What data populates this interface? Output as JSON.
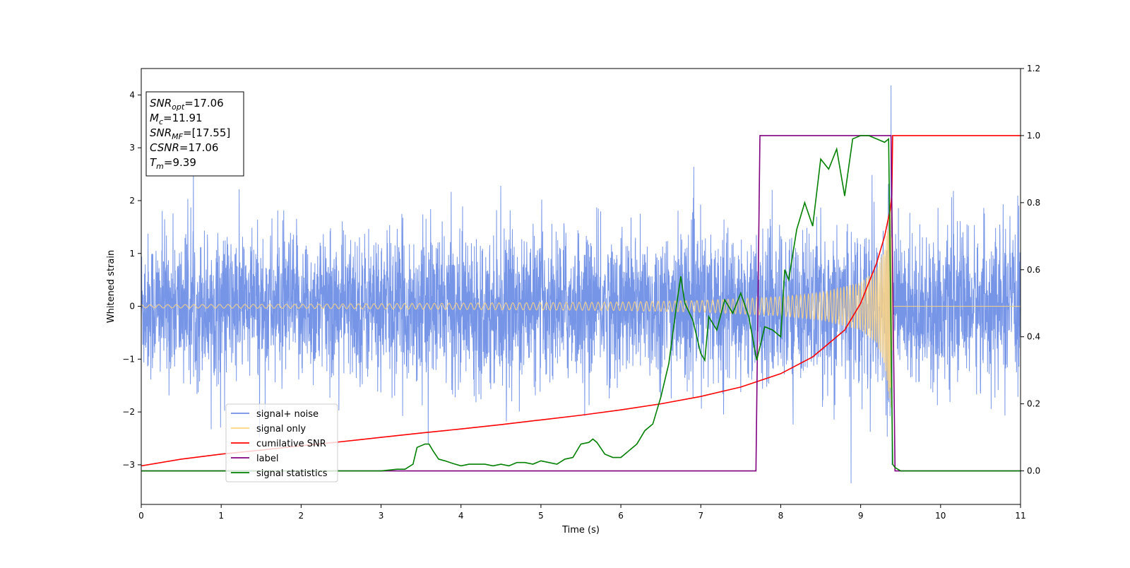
{
  "chart_data": {
    "type": "line",
    "xlabel": "Time (s)",
    "ylabel": "Whitened strain",
    "xlim": [
      0,
      11
    ],
    "ylim": [
      -3.75,
      4.5
    ],
    "y2lim": [
      -0.1,
      1.2
    ],
    "xticks": [
      "0",
      "1",
      "2",
      "3",
      "4",
      "5",
      "6",
      "7",
      "8",
      "9",
      "10",
      "11"
    ],
    "yticks": [
      "−3",
      "−2",
      "−1",
      "0",
      "1",
      "2",
      "3",
      "4"
    ],
    "y2ticks": [
      "0.0",
      "0.2",
      "0.4",
      "0.6",
      "0.8",
      "1.0",
      "1.2"
    ],
    "grid": false,
    "legend_position": "lower-left",
    "series": [
      {
        "name": "signal+ noise",
        "color": "#6f8fe6",
        "axis": "left",
        "description_points": {
          "noise_std": 0.72,
          "typical_max": 3.0,
          "peak_x": 9.38,
          "peak_y": 4.18,
          "min_x": 8.88,
          "min_y": -3.35
        }
      },
      {
        "name": "signal only",
        "color": "#ffd580",
        "axis": "left",
        "envelope": {
          "x": [
            0,
            2,
            4,
            6,
            7,
            8,
            8.5,
            9,
            9.2,
            9.3,
            9.37,
            9.39,
            9.4,
            11
          ],
          "amp": [
            0.03,
            0.04,
            0.06,
            0.08,
            0.11,
            0.18,
            0.26,
            0.45,
            0.7,
            1.1,
            1.9,
            2.2,
            0,
            0
          ]
        }
      },
      {
        "name": "cumilative SNR",
        "color": "#ff0000",
        "axis": "right",
        "x": [
          0,
          0.5,
          1,
          1.5,
          2,
          2.5,
          3,
          3.5,
          4,
          4.5,
          5,
          5.5,
          6,
          6.5,
          7,
          7.5,
          8,
          8.4,
          8.8,
          9,
          9.2,
          9.3,
          9.37,
          9.39,
          9.4,
          11
        ],
        "y": [
          0.015,
          0.035,
          0.05,
          0.062,
          0.075,
          0.087,
          0.1,
          0.113,
          0.125,
          0.138,
          0.152,
          0.166,
          0.182,
          0.2,
          0.222,
          0.25,
          0.29,
          0.34,
          0.42,
          0.5,
          0.62,
          0.7,
          0.78,
          0.82,
          1.0,
          1.0
        ]
      },
      {
        "name": "label",
        "color": "#800080",
        "axis": "right",
        "x": [
          0,
          7.69,
          7.74,
          9.38,
          9.43,
          11
        ],
        "y": [
          0,
          0,
          1,
          1,
          0,
          0
        ]
      },
      {
        "name": "signal statistics",
        "color": "#008000",
        "axis": "right",
        "x": [
          0,
          3.0,
          3.2,
          3.3,
          3.4,
          3.45,
          3.55,
          3.6,
          3.65,
          3.72,
          3.8,
          3.9,
          4.0,
          4.1,
          4.2,
          4.3,
          4.4,
          4.5,
          4.6,
          4.7,
          4.8,
          4.9,
          5.0,
          5.1,
          5.2,
          5.3,
          5.4,
          5.5,
          5.6,
          5.65,
          5.7,
          5.8,
          5.9,
          6.0,
          6.1,
          6.2,
          6.3,
          6.4,
          6.5,
          6.6,
          6.7,
          6.75,
          6.8,
          6.9,
          7.0,
          7.05,
          7.1,
          7.2,
          7.3,
          7.4,
          7.5,
          7.6,
          7.7,
          7.8,
          7.9,
          8.0,
          8.05,
          8.1,
          8.2,
          8.3,
          8.4,
          8.5,
          8.6,
          8.7,
          8.8,
          8.9,
          9.0,
          9.1,
          9.2,
          9.3,
          9.35,
          9.4,
          9.43,
          9.5,
          11
        ],
        "y": [
          0,
          0,
          0.005,
          0.005,
          0.02,
          0.07,
          0.08,
          0.08,
          0.06,
          0.035,
          0.03,
          0.022,
          0.015,
          0.02,
          0.02,
          0.02,
          0.015,
          0.02,
          0.015,
          0.025,
          0.025,
          0.02,
          0.03,
          0.025,
          0.02,
          0.035,
          0.04,
          0.08,
          0.085,
          0.095,
          0.085,
          0.05,
          0.04,
          0.04,
          0.06,
          0.08,
          0.12,
          0.14,
          0.22,
          0.32,
          0.5,
          0.58,
          0.5,
          0.45,
          0.35,
          0.33,
          0.46,
          0.42,
          0.51,
          0.47,
          0.53,
          0.46,
          0.33,
          0.43,
          0.42,
          0.4,
          0.6,
          0.57,
          0.72,
          0.8,
          0.73,
          0.93,
          0.9,
          0.96,
          0.82,
          0.99,
          1.0,
          1.0,
          0.99,
          0.98,
          0.99,
          0.02,
          0.01,
          0,
          0
        ]
      }
    ],
    "annotation": {
      "lines": [
        {
          "main": "SNR",
          "sub": "opt",
          "rest": "=17.06"
        },
        {
          "main": "M",
          "sub": "c",
          "rest": "=11.91"
        },
        {
          "main": "SNR",
          "sub": "MF",
          "rest": "=[17.55]"
        },
        {
          "main": "CSNR",
          "sub": "",
          "rest": "=17.06"
        },
        {
          "main": "T",
          "sub": "m",
          "rest": "=9.39"
        }
      ]
    }
  }
}
